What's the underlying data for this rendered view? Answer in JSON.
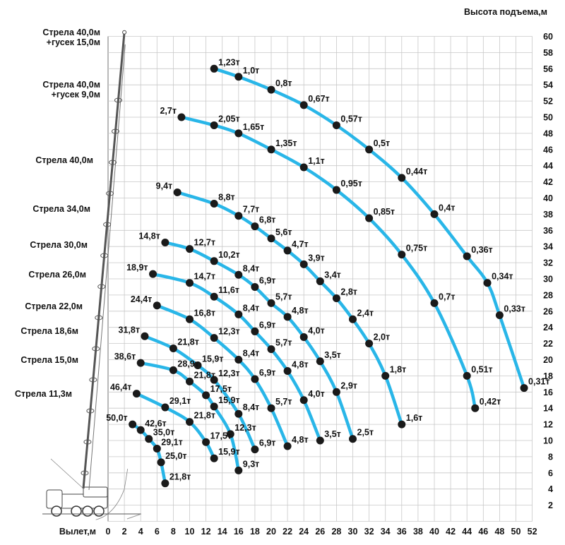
{
  "chart_data": {
    "type": "line",
    "ylabel": "Высота подъема,м",
    "xlabel": "Вылет,м",
    "xlim": [
      -2,
      52
    ],
    "ylim": [
      0,
      60
    ],
    "x_ticks": [
      0,
      2,
      4,
      6,
      8,
      10,
      12,
      14,
      16,
      18,
      20,
      22,
      24,
      26,
      28,
      30,
      32,
      34,
      36,
      38,
      40,
      42,
      44,
      46,
      48,
      50,
      52
    ],
    "x_tick_labels": [
      "0",
      "2",
      "4",
      "6",
      "8",
      "10",
      "12",
      "14",
      "16",
      "18",
      "20",
      "22",
      "24",
      "26",
      "28",
      "30",
      "32",
      "34",
      "36",
      "38",
      "40",
      "42",
      "44",
      "46",
      "48",
      "50",
      "52"
    ],
    "y_ticks": [
      2,
      4,
      6,
      8,
      10,
      12,
      14,
      16,
      18,
      20,
      22,
      24,
      26,
      28,
      30,
      32,
      34,
      36,
      38,
      40,
      42,
      44,
      46,
      48,
      50,
      52,
      54,
      56,
      58,
      60
    ],
    "y_tick_labels": [
      "2",
      "4",
      "6",
      "8",
      "10",
      "12",
      "14",
      "16",
      "18",
      "20",
      "22",
      "24",
      "26",
      "28",
      "30",
      "32",
      "34",
      "36",
      "38",
      "40",
      "42",
      "44",
      "46",
      "48",
      "50",
      "52",
      "54",
      "56",
      "58",
      "60"
    ],
    "grid": true,
    "colors": {
      "curve": "#29b6e8",
      "point": "#1a1a1a",
      "grid": "#c8c8c8",
      "axis_line": "#8a8a8a"
    },
    "boom_labels": [
      {
        "lines": [
          "Стрела 40,0м",
          "+гусек 15,0м"
        ]
      },
      {
        "lines": [
          "Стрела 40,0м",
          "+гусек 9,0м"
        ]
      },
      {
        "lines": [
          "Стрела 40,0м"
        ]
      },
      {
        "lines": [
          "Стрела 34,0м"
        ]
      },
      {
        "lines": [
          "Стрела 30,0м"
        ]
      },
      {
        "lines": [
          "Стрела 26,0м"
        ]
      },
      {
        "lines": [
          "Стрела 22,0м"
        ]
      },
      {
        "lines": [
          "Стрела 18,6м"
        ]
      },
      {
        "lines": [
          "Стрела 15,0м"
        ]
      },
      {
        "lines": [
          "Стрела 11,3м"
        ]
      }
    ],
    "series": [
      {
        "points": [
          {
            "x": 13,
            "y": 56,
            "label": "1,23т"
          },
          {
            "x": 16,
            "y": 55,
            "label": "1,0т"
          },
          {
            "x": 20,
            "y": 53.4,
            "label": "0,8т"
          },
          {
            "x": 24,
            "y": 51.5,
            "label": "0,67т"
          },
          {
            "x": 28,
            "y": 49,
            "label": "0,57т"
          },
          {
            "x": 32,
            "y": 46,
            "label": "0,5т"
          },
          {
            "x": 36,
            "y": 42.5,
            "label": "0,44т"
          },
          {
            "x": 40,
            "y": 38,
            "label": "0,4т"
          },
          {
            "x": 44,
            "y": 32.8,
            "label": "0,36т"
          },
          {
            "x": 46.5,
            "y": 29.5,
            "label": "0,34т"
          },
          {
            "x": 48,
            "y": 25.5,
            "label": "0,33т"
          },
          {
            "x": 51,
            "y": 16.5,
            "label": "0,31т"
          }
        ]
      },
      {
        "points": [
          {
            "x": 9,
            "y": 50,
            "label": "2,7т"
          },
          {
            "x": 13,
            "y": 49,
            "label": "2,05т"
          },
          {
            "x": 16,
            "y": 48,
            "label": "1,65т"
          },
          {
            "x": 20,
            "y": 46,
            "label": "1,35т"
          },
          {
            "x": 24,
            "y": 43.8,
            "label": "1,1т"
          },
          {
            "x": 28,
            "y": 41,
            "label": "0,95т"
          },
          {
            "x": 32,
            "y": 37.5,
            "label": "0,85т"
          },
          {
            "x": 36,
            "y": 33,
            "label": "0,75т"
          },
          {
            "x": 40,
            "y": 27,
            "label": "0,7т"
          },
          {
            "x": 44,
            "y": 18,
            "label": "0,51т"
          },
          {
            "x": 45,
            "y": 14,
            "label": "0,42т"
          }
        ]
      },
      {
        "points": [
          {
            "x": 8.5,
            "y": 40.7,
            "label": "9,4т"
          },
          {
            "x": 13,
            "y": 39.3,
            "label": "8,8т"
          },
          {
            "x": 16,
            "y": 37.8,
            "label": "7,7т"
          },
          {
            "x": 18,
            "y": 36.5,
            "label": "6,8т"
          },
          {
            "x": 20,
            "y": 35,
            "label": "5,6т"
          },
          {
            "x": 22,
            "y": 33.5,
            "label": "4,7т"
          },
          {
            "x": 24,
            "y": 31.8,
            "label": "3,9т"
          },
          {
            "x": 26,
            "y": 29.7,
            "label": "3,4т"
          },
          {
            "x": 28,
            "y": 27.6,
            "label": "2,8т"
          },
          {
            "x": 30,
            "y": 25,
            "label": "2,4т"
          },
          {
            "x": 32,
            "y": 22,
            "label": "2,0т"
          },
          {
            "x": 34,
            "y": 18,
            "label": "1,8т"
          },
          {
            "x": 36,
            "y": 12,
            "label": "1,6т"
          }
        ]
      },
      {
        "points": [
          {
            "x": 7,
            "y": 34.5,
            "label": "14,8т"
          },
          {
            "x": 10,
            "y": 33.7,
            "label": "12,7т"
          },
          {
            "x": 13,
            "y": 32.2,
            "label": "10,2т"
          },
          {
            "x": 16,
            "y": 30.5,
            "label": "8,4т"
          },
          {
            "x": 18,
            "y": 29,
            "label": "6,9т"
          },
          {
            "x": 20,
            "y": 27,
            "label": "5,7т"
          },
          {
            "x": 22,
            "y": 25.3,
            "label": "4,8т"
          },
          {
            "x": 24,
            "y": 22.8,
            "label": "4,0т"
          },
          {
            "x": 26,
            "y": 19.8,
            "label": "3,5т"
          },
          {
            "x": 28,
            "y": 16,
            "label": "2,9т"
          },
          {
            "x": 30,
            "y": 10.2,
            "label": "2,5т"
          }
        ]
      },
      {
        "points": [
          {
            "x": 5.5,
            "y": 30.6,
            "label": "18,9т"
          },
          {
            "x": 10,
            "y": 29.5,
            "label": "14,7т"
          },
          {
            "x": 13,
            "y": 27.8,
            "label": "11,6т"
          },
          {
            "x": 16,
            "y": 25.6,
            "label": "8,4т"
          },
          {
            "x": 18,
            "y": 23.5,
            "label": "6,9т"
          },
          {
            "x": 20,
            "y": 21.3,
            "label": "5,7т"
          },
          {
            "x": 22,
            "y": 18.6,
            "label": "4,8т"
          },
          {
            "x": 24,
            "y": 15,
            "label": "4,0т"
          },
          {
            "x": 26,
            "y": 10,
            "label": "3,5т"
          }
        ]
      },
      {
        "points": [
          {
            "x": 6,
            "y": 26.7,
            "label": "24,4т"
          },
          {
            "x": 10,
            "y": 25,
            "label": "16,8т"
          },
          {
            "x": 13,
            "y": 22.7,
            "label": "12,3т"
          },
          {
            "x": 16,
            "y": 20,
            "label": "8,4т"
          },
          {
            "x": 18,
            "y": 17.6,
            "label": "6,9т"
          },
          {
            "x": 20,
            "y": 14,
            "label": "5,7т"
          },
          {
            "x": 22,
            "y": 9.3,
            "label": "4,8т"
          }
        ]
      },
      {
        "points": [
          {
            "x": 4.5,
            "y": 22.9,
            "label": "31,8т"
          },
          {
            "x": 8,
            "y": 21.4,
            "label": "21,8т"
          },
          {
            "x": 11,
            "y": 19.3,
            "label": "15,9т"
          },
          {
            "x": 13,
            "y": 17.5,
            "label": "12,3т"
          },
          {
            "x": 16,
            "y": 13.3,
            "label": "8,4т"
          },
          {
            "x": 18,
            "y": 8.9,
            "label": "6,9т"
          }
        ]
      },
      {
        "points": [
          {
            "x": 4,
            "y": 19.6,
            "label": "38,6т"
          },
          {
            "x": 8,
            "y": 18.7,
            "label": "28,9т"
          },
          {
            "x": 10,
            "y": 17.3,
            "label": "21,8т"
          },
          {
            "x": 12,
            "y": 15.6,
            "label": "17,5т"
          },
          {
            "x": 13,
            "y": 14.2,
            "label": "15,9т"
          },
          {
            "x": 15,
            "y": 10.8,
            "label": "12,3т"
          },
          {
            "x": 16,
            "y": 6.3,
            "label": "9,3т"
          }
        ]
      },
      {
        "points": [
          {
            "x": 3.5,
            "y": 15.8,
            "label": "46,4т"
          },
          {
            "x": 7,
            "y": 14.1,
            "label": "29,1т"
          },
          {
            "x": 10,
            "y": 12.3,
            "label": "21,8т"
          },
          {
            "x": 12,
            "y": 9.8,
            "label": "17,5т"
          },
          {
            "x": 13,
            "y": 7.8,
            "label": "15,9т"
          }
        ]
      },
      {
        "points": [
          {
            "x": 3,
            "y": 12,
            "label": "50,0т"
          },
          {
            "x": 4,
            "y": 11.3,
            "label": "42,6т"
          },
          {
            "x": 5,
            "y": 10.2,
            "label": "35,0т"
          },
          {
            "x": 6,
            "y": 9,
            "label": "29,1т"
          },
          {
            "x": 6.5,
            "y": 7.3,
            "label": "25,0т"
          },
          {
            "x": 7,
            "y": 4.7,
            "label": "21,8т"
          }
        ]
      }
    ]
  }
}
